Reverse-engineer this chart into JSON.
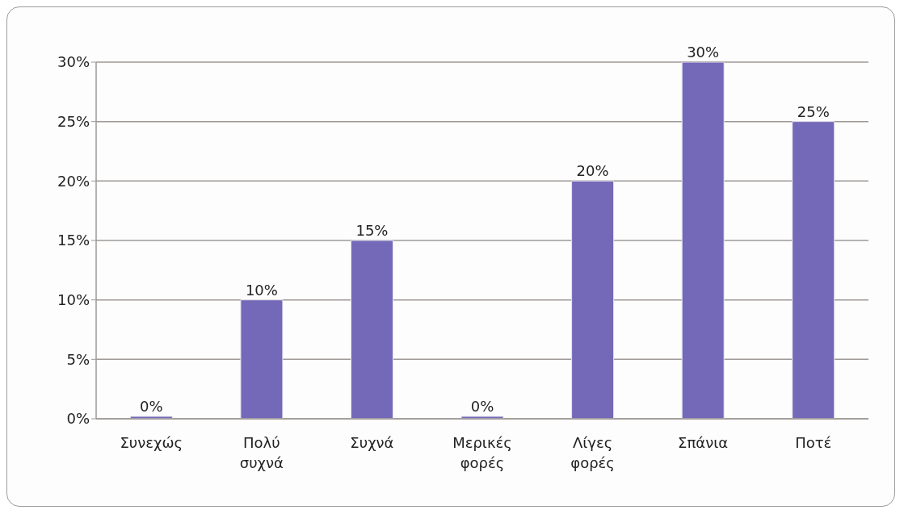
{
  "chart_data": {
    "type": "bar",
    "categories": [
      "Συνεχώς",
      "Πολύ συχνά",
      "Συχνά",
      "Μερικές φορές",
      "Λίγες φορές",
      "Σπάνια",
      "Ποτέ"
    ],
    "values": [
      0,
      10,
      15,
      0,
      20,
      30,
      25
    ],
    "value_labels": [
      "0%",
      "10%",
      "15%",
      "0%",
      "20%",
      "30%",
      "25%"
    ],
    "color": "#7468b8",
    "ylim": [
      0,
      30
    ],
    "yticks": [
      {
        "value": 0,
        "label": "0%"
      },
      {
        "value": 5,
        "label": "5%"
      },
      {
        "value": 10,
        "label": "10%"
      },
      {
        "value": 15,
        "label": "15%"
      },
      {
        "value": 20,
        "label": "20%"
      },
      {
        "value": 25,
        "label": "25%"
      },
      {
        "value": 30,
        "label": "30%"
      }
    ],
    "grid": "y"
  }
}
